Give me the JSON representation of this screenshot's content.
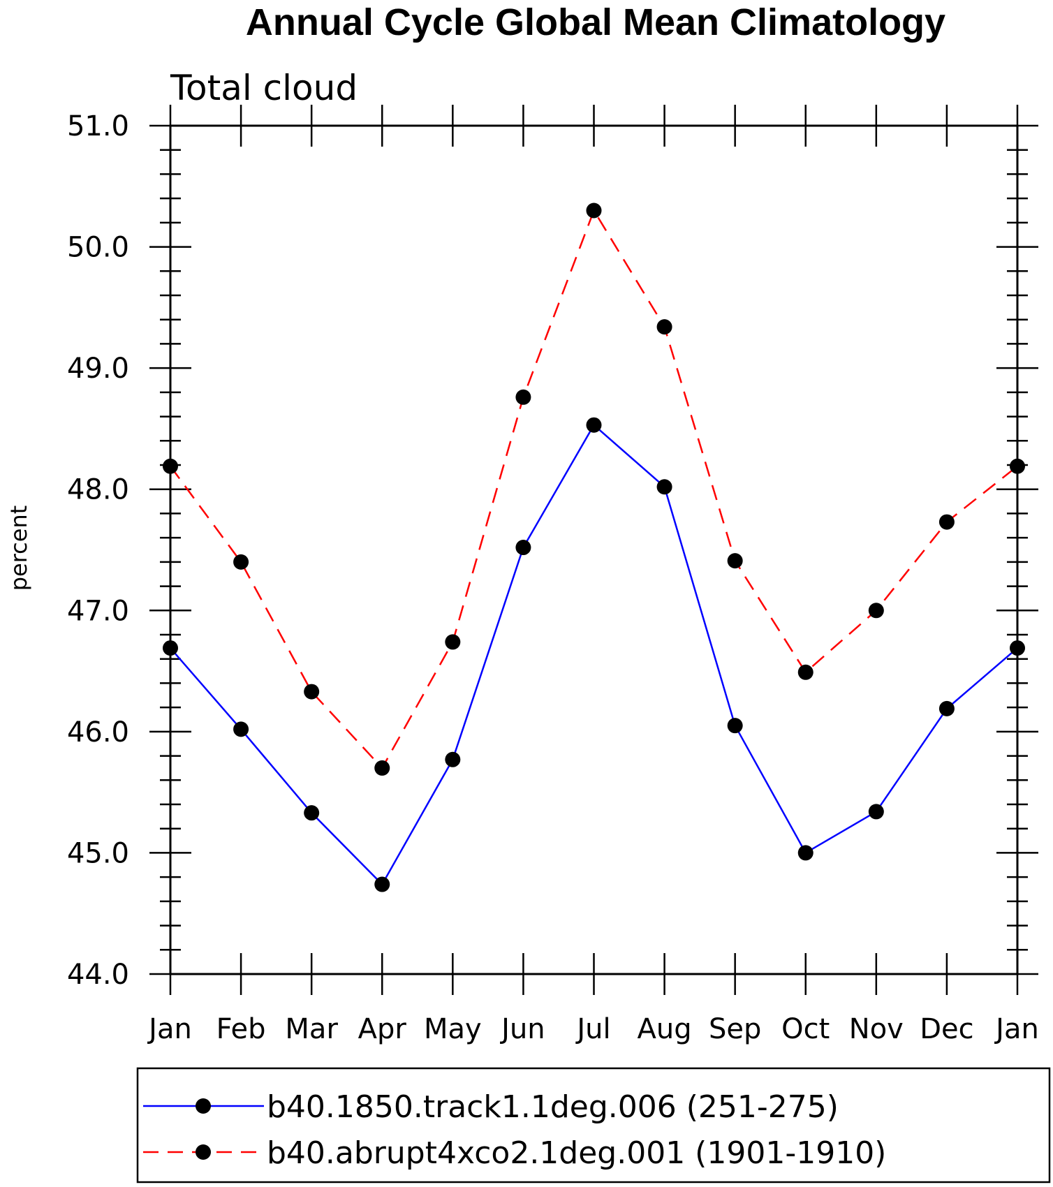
{
  "chart_data": {
    "type": "line",
    "title": "Annual Cycle Global Mean Climatology",
    "subtitle": "Total cloud",
    "xlabel": "",
    "ylabel": "percent",
    "categories": [
      "Jan",
      "Feb",
      "Mar",
      "Apr",
      "May",
      "Jun",
      "Jul",
      "Aug",
      "Sep",
      "Oct",
      "Nov",
      "Dec",
      "Jan"
    ],
    "ylim": [
      44.0,
      51.0
    ],
    "yticks": [
      "44.0",
      "45.0",
      "46.0",
      "47.0",
      "48.0",
      "49.0",
      "50.0",
      "51.0"
    ],
    "grid": false,
    "legend_position": "bottom",
    "series": [
      {
        "name": "b40.1850.track1.1deg.006 (251-275)",
        "color": "#0000ff",
        "line_style": "solid",
        "marker": "filled-circle",
        "values": [
          46.69,
          46.02,
          45.33,
          44.74,
          45.77,
          47.52,
          48.53,
          48.02,
          46.05,
          45.0,
          45.34,
          46.19,
          46.69
        ]
      },
      {
        "name": "b40.abrupt4xco2.1deg.001 (1901-1910)",
        "color": "#ff0000",
        "line_style": "dashed",
        "marker": "filled-circle",
        "values": [
          48.19,
          47.4,
          46.33,
          45.7,
          46.74,
          48.76,
          50.3,
          49.34,
          47.41,
          46.49,
          47.0,
          47.73,
          48.19
        ]
      }
    ]
  }
}
